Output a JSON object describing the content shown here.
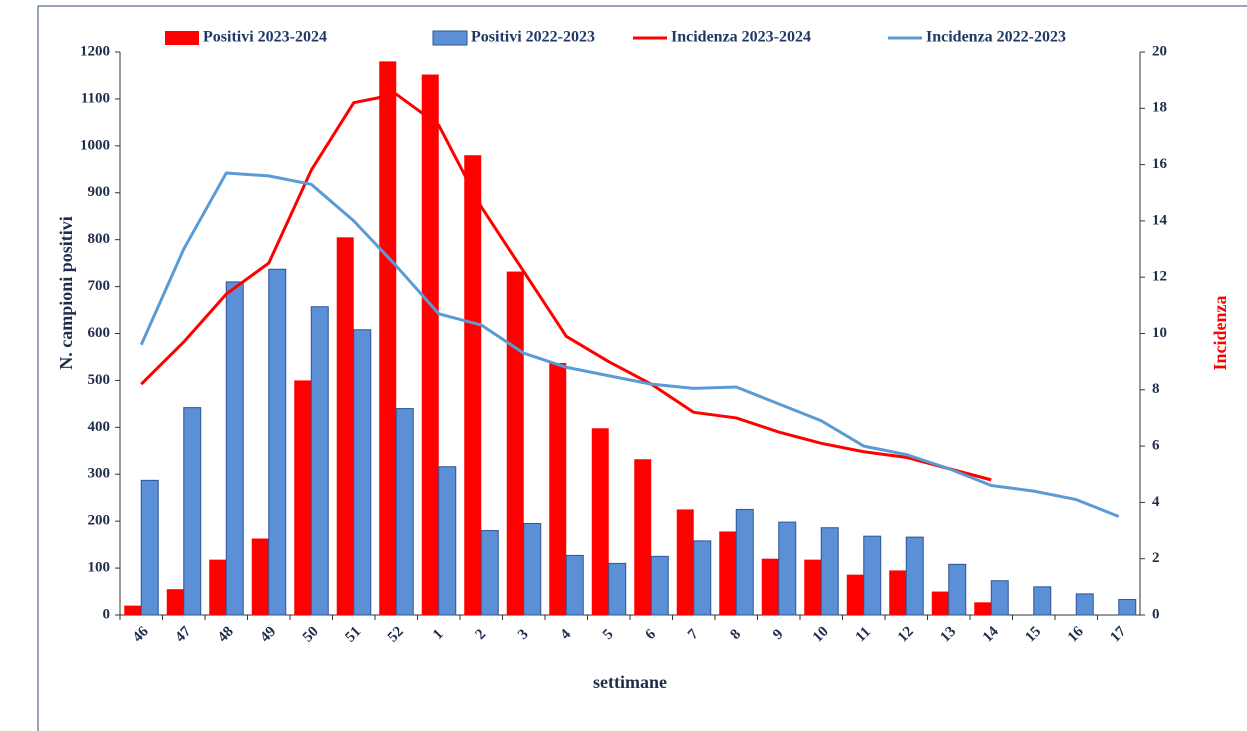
{
  "chart_data": {
    "type": "combo",
    "categories": [
      "46",
      "47",
      "48",
      "49",
      "50",
      "51",
      "52",
      "1",
      "2",
      "3",
      "4",
      "5",
      "6",
      "7",
      "8",
      "9",
      "10",
      "11",
      "12",
      "13",
      "14",
      "15",
      "16",
      "17"
    ],
    "x_label": "settimane",
    "y_label": "N. campioni positivi",
    "y2_label": "Incidenza",
    "ylim": [
      0,
      1200
    ],
    "yticks": [
      0,
      100,
      200,
      300,
      400,
      500,
      600,
      700,
      800,
      900,
      1000,
      1100,
      1200
    ],
    "y2lim": [
      0,
      20
    ],
    "y2ticks": [
      0,
      2,
      4,
      6,
      8,
      10,
      12,
      14,
      16,
      18,
      20
    ],
    "series": [
      {
        "name": "Positivi 2023-2024",
        "type": "bar",
        "color": "#ff0000",
        "values": [
          20,
          55,
          118,
          163,
          500,
          805,
          1180,
          1152,
          980,
          732,
          537,
          398,
          332,
          225,
          178,
          120,
          118,
          86,
          95,
          50,
          27,
          null,
          null,
          null
        ]
      },
      {
        "name": "Positivi 2022-2023",
        "type": "bar",
        "color": "#5b8fd6",
        "values": [
          287,
          442,
          710,
          737,
          657,
          608,
          440,
          316,
          180,
          195,
          127,
          110,
          125,
          158,
          225,
          198,
          186,
          168,
          166,
          108,
          73,
          60,
          45,
          33
        ]
      },
      {
        "name": "Incidenza 2023-2024",
        "type": "line",
        "axis": "y2",
        "color": "#ff0000",
        "values": [
          8.2,
          9.7,
          11.4,
          12.5,
          15.8,
          18.2,
          18.5,
          17.4,
          14.5,
          12.2,
          9.9,
          9.0,
          8.2,
          7.2,
          7.0,
          6.5,
          6.1,
          5.8,
          5.6,
          5.2,
          4.8,
          null,
          null,
          null
        ]
      },
      {
        "name": "Incidenza 2022-2023",
        "type": "line",
        "axis": "y2",
        "color": "#5b9bd5",
        "values": [
          9.6,
          13.0,
          15.7,
          15.6,
          15.3,
          14.0,
          12.4,
          10.7,
          10.3,
          9.3,
          8.8,
          8.5,
          8.2,
          8.05,
          8.1,
          7.5,
          6.9,
          6.0,
          5.7,
          5.2,
          4.6,
          4.4,
          4.1,
          3.5
        ]
      }
    ]
  }
}
